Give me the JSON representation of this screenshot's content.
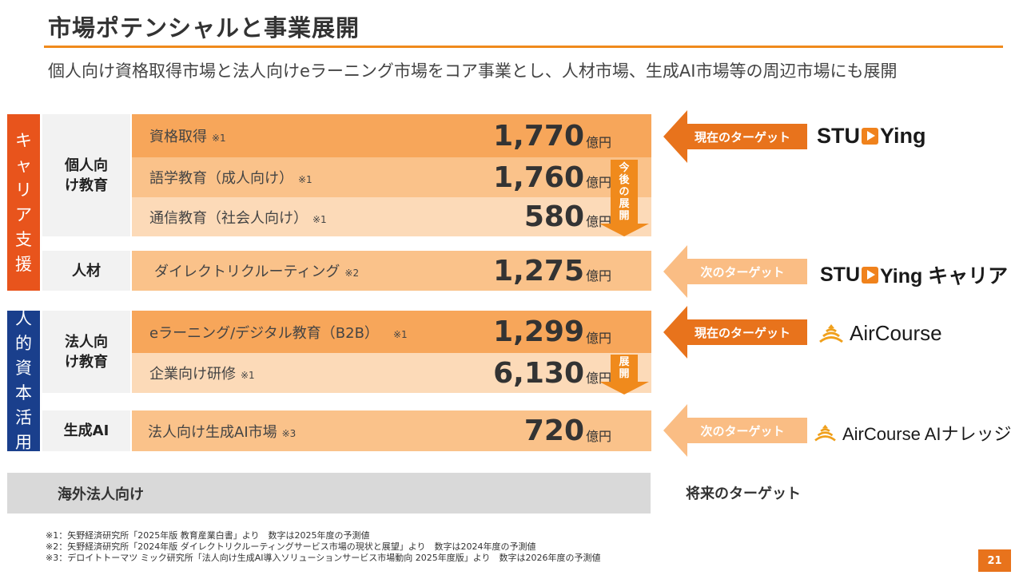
{
  "title": "市場ポテンシャルと事業展開",
  "subtitle": "個人向け資格取得市場と法人向けeラーニング市場をコア事業とし、人材市場、生成AI市場等の周辺市場にも展開",
  "sections": {
    "career": "キャリア支援",
    "human_capital": "人的資本活用"
  },
  "categories": {
    "individual": "個人向け教育",
    "hr": "人材",
    "corporate": "法人向け教育",
    "genai": "生成AI"
  },
  "markets": [
    {
      "label": "資格取得",
      "note": "※1",
      "value": "1,770",
      "unit": "億円"
    },
    {
      "label": "語学教育（成人向け）",
      "note": "※1",
      "value": "1,760",
      "unit": "億円"
    },
    {
      "label": "通信教育（社会人向け）",
      "note": "※1",
      "value": "580",
      "unit": "億円"
    },
    {
      "label": "ダイレクトリクルーティング",
      "note": "※2",
      "value": "1,275",
      "unit": "億円"
    },
    {
      "label": "eラーニング/デジタル教育（B2B）",
      "note": "※1",
      "value": "1,299",
      "unit": "億円"
    },
    {
      "label": "企業向け研修",
      "note": "※1",
      "value": "6,130",
      "unit": "億円"
    },
    {
      "label": "法人向け生成AI市場",
      "note": "※3",
      "value": "720",
      "unit": "億円"
    }
  ],
  "down_arrows": {
    "future_expansion": "今後の展開",
    "expansion": "展開"
  },
  "targets": {
    "current1": "現在のターゲット",
    "next1": "次のターゲット",
    "current2": "現在のターゲット",
    "next2": "次のターゲット"
  },
  "logos": {
    "studying_left": "STU",
    "studying_right": "Ying",
    "studying_career_left": "STU",
    "studying_career_right": "Ying キャリア",
    "aircourse": "AirCourse",
    "aircourse_ai": "AirCourse AIナレッジ"
  },
  "overseas": "海外法人向け",
  "future_target": "将来のターゲット",
  "notes": [
    "※1：矢野経済研究所「2025年版 教育産業白書」より　数字は2025年度の予測値",
    "※2：矢野経済研究所「2024年版 ダイレクトリクルーティングサービス市場の現状と展望」より　数字は2024年度の予測値",
    "※3：デロイトトーマツ ミック研究所「法人向け生成AI導入ソリューションサービス市場動向 2025年度版」より　数字は2026年度の予測値"
  ],
  "page_number": "21",
  "colors": {
    "accent_orange": "#f08a1c",
    "career_red": "#e8541c",
    "human_navy": "#1a3f8c"
  },
  "icons": [
    "play-icon",
    "aircourse-icon",
    "left-arrow-icon",
    "down-arrow-icon"
  ]
}
